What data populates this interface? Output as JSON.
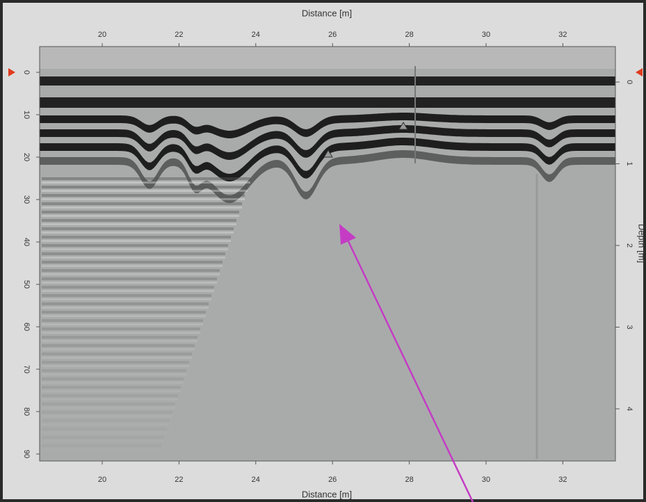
{
  "top_axis": {
    "label": "Distance [m]",
    "ticks": [
      20,
      22,
      24,
      26,
      28,
      30,
      32
    ]
  },
  "bottom_axis": {
    "label": "Distance [m]",
    "ticks": [
      20,
      22,
      24,
      26,
      28,
      30,
      32
    ]
  },
  "left_axis": {
    "ticks": [
      0,
      10,
      20,
      30,
      40,
      50,
      60,
      70,
      80,
      90
    ]
  },
  "right_axis": {
    "label": "Depth [m]",
    "ticks": [
      0,
      1,
      2,
      3,
      4
    ]
  }
}
